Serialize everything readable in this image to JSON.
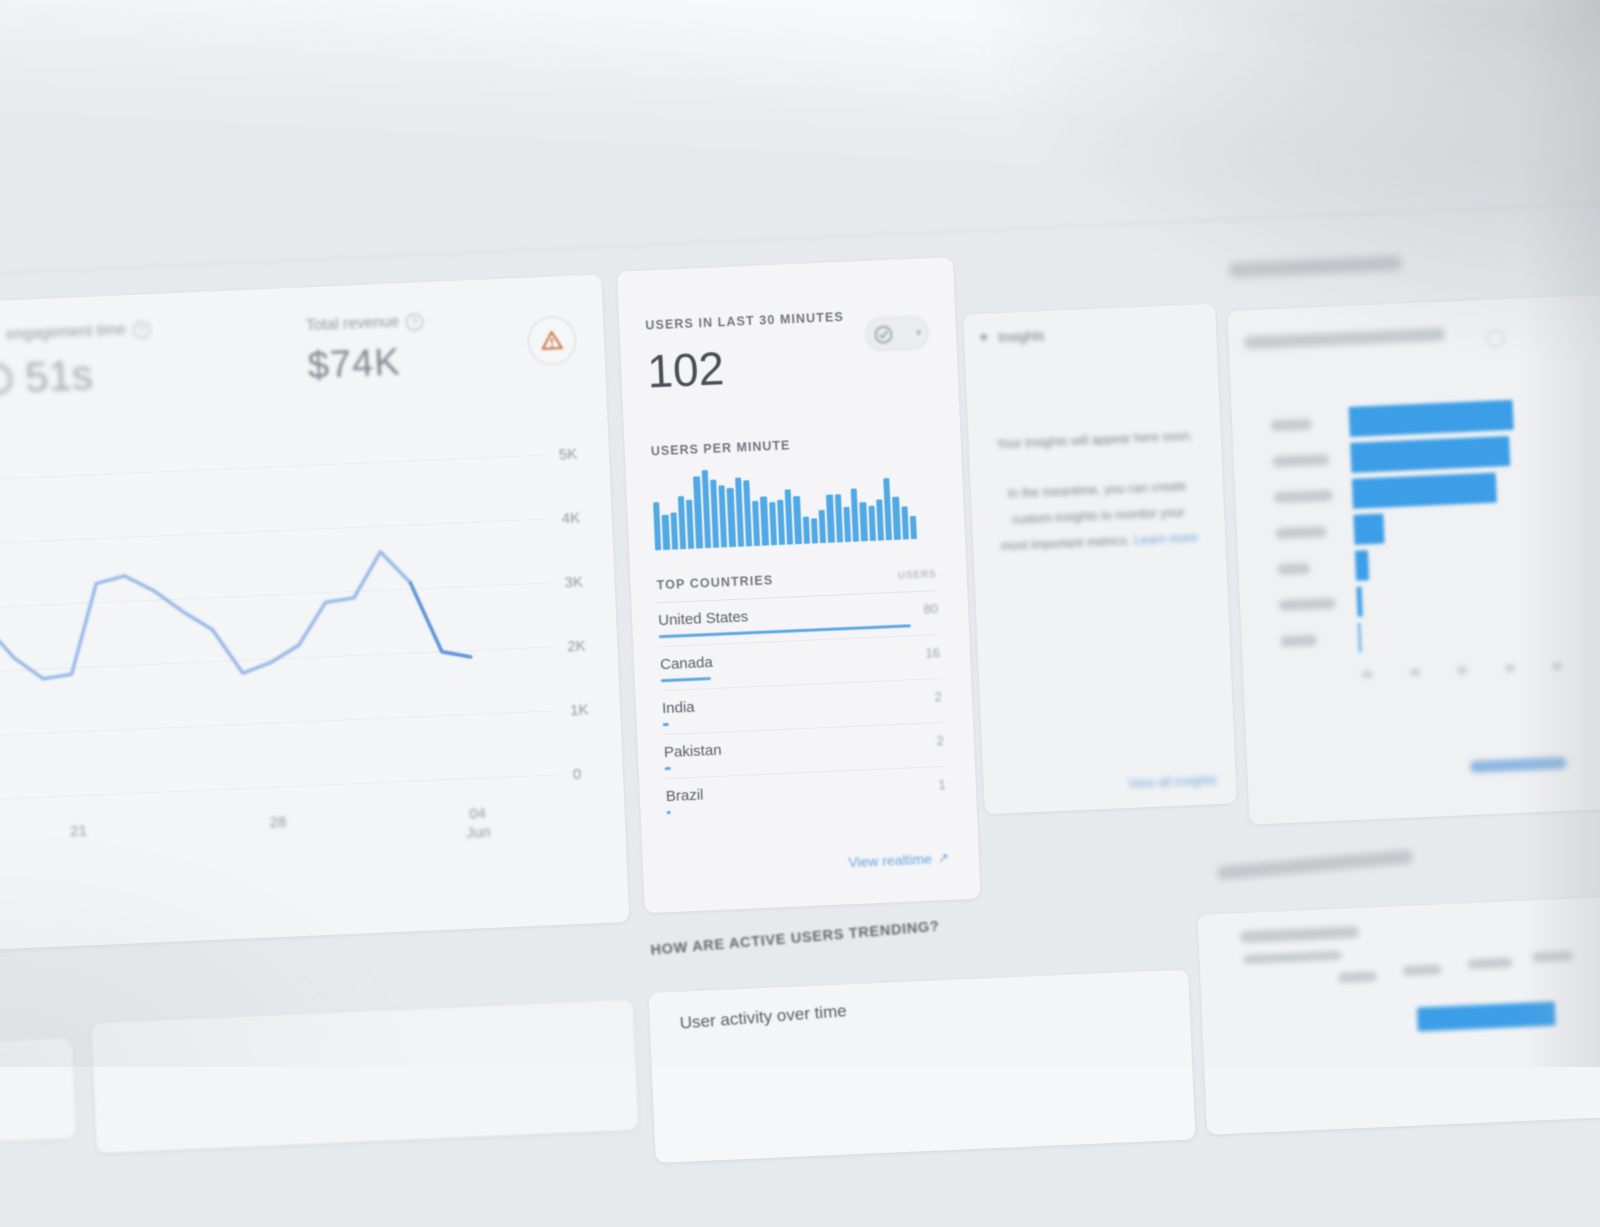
{
  "colors": {
    "accent_blue": "#4285f4",
    "bar_blue": "#2d9fea",
    "deep_bar_blue": "#1493f0",
    "line_blue": "#8ab2ef",
    "link_blue": "#4f98e0",
    "warning_orange": "#cf6220",
    "page_background": "#e7eaec",
    "card_background": "#f7f8f9"
  },
  "left_card": {
    "engagement_metric": {
      "label": "engagement time",
      "value": "51s",
      "help_icon": "help-icon"
    },
    "revenue_metric": {
      "label": "Total revenue",
      "value": "$74K",
      "help_icon": "help-icon"
    },
    "warning_icon": "warning-triangle-icon"
  },
  "realtime_card": {
    "title": "USERS IN LAST 30 MINUTES",
    "users_count": "102",
    "status_control_icons": [
      "check-circle-icon",
      "caret-down-icon"
    ],
    "per_minute_label": "USERS PER MINUTE",
    "top_countries_label": "TOP COUNTRIES",
    "users_column_label": "USERS",
    "countries": [
      {
        "name": "United States",
        "users": "80"
      },
      {
        "name": "Canada",
        "users": "16"
      },
      {
        "name": "India",
        "users": "2"
      },
      {
        "name": "Pakistan",
        "users": "2"
      },
      {
        "name": "Brazil",
        "users": "1"
      }
    ],
    "view_realtime_label": "View realtime",
    "view_realtime_icon": "arrow-up-right-icon"
  },
  "insights_card": {
    "title": "Insights",
    "title_icon": "insights-sparkle-icon",
    "body_lines": [
      "Your insights will appear here soon.",
      "In the meantime, you can create",
      "custom insights to monitor your",
      "most important metrics."
    ],
    "learn_more_label": "Learn more",
    "footer_link_label": "View all insights"
  },
  "bottom_section": {
    "question_heading": "HOW ARE ACTIVE USERS TRENDING?",
    "activity_card_title": "User activity over time",
    "right_warning_icon": "warning-triangle-icon"
  },
  "chart_data": [
    {
      "type": "line",
      "title": "Total revenue",
      "ylim": [
        0,
        5000
      ],
      "grid": "horizontal",
      "legend": "none",
      "y_ticks": [
        {
          "v": 5000,
          "label": "5K"
        },
        {
          "v": 4000,
          "label": "4K"
        },
        {
          "v": 3000,
          "label": "3K"
        },
        {
          "v": 2000,
          "label": "2K"
        },
        {
          "v": 1000,
          "label": "1K"
        },
        {
          "v": 0,
          "label": "0"
        }
      ],
      "x_ticks": [
        {
          "index": 3,
          "label": "21"
        },
        {
          "index": 10,
          "label": "28"
        },
        {
          "index": 17,
          "label": "04 Jun"
        }
      ],
      "values": [
        2750,
        2200,
        1850,
        1900,
        3300,
        3400,
        3150,
        2800,
        2500,
        1800,
        1950,
        2200,
        2850,
        2900,
        3600,
        3100,
        2000,
        1900
      ]
    },
    {
      "type": "bar",
      "title": "USERS PER MINUTE",
      "axis_labels": "none",
      "values_relative_pct": [
        61,
        45,
        47,
        68,
        63,
        92,
        100,
        87,
        79,
        76,
        89,
        84,
        58,
        63,
        55,
        58,
        71,
        61,
        34,
        32,
        42,
        61,
        61,
        45,
        68,
        50,
        45,
        53,
        79,
        55,
        42,
        29
      ]
    },
    {
      "type": "bar",
      "orientation": "horizontal",
      "labels_illegible": true,
      "values_relative_pct": [
        100,
        97,
        88,
        18,
        8,
        3,
        1
      ]
    }
  ]
}
